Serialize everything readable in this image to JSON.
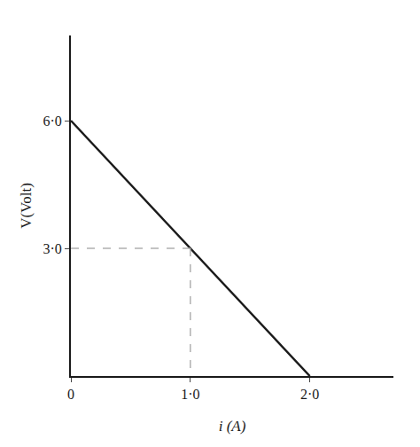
{
  "chart_data": {
    "type": "line",
    "xlabel": "i (A)",
    "ylabel": "V(Volt)",
    "series": [
      {
        "color": "#1a1a1a",
        "x": [
          0,
          2.0
        ],
        "values": [
          6.0,
          0.0
        ]
      },
      {
        "color": "#b0b0b0",
        "line_style": "dashed",
        "x": [
          0,
          1.0
        ],
        "values": [
          3.0,
          3.0
        ]
      },
      {
        "color": "#b0b0b0",
        "line_style": "dashed",
        "x": [
          1.0,
          1.0
        ],
        "values": [
          3.0,
          0.0
        ]
      }
    ],
    "xlim": [
      0,
      2.7
    ],
    "ylim": [
      0,
      8.0
    ],
    "xticks": [
      0,
      {
        "value": 1.0,
        "label": "1·0"
      },
      {
        "value": 2.0,
        "label": "2·0"
      }
    ],
    "yticks": [
      {
        "value": 3.0,
        "label": "3·0"
      },
      {
        "value": 6.0,
        "label": "6·0"
      }
    ],
    "grid": false
  }
}
